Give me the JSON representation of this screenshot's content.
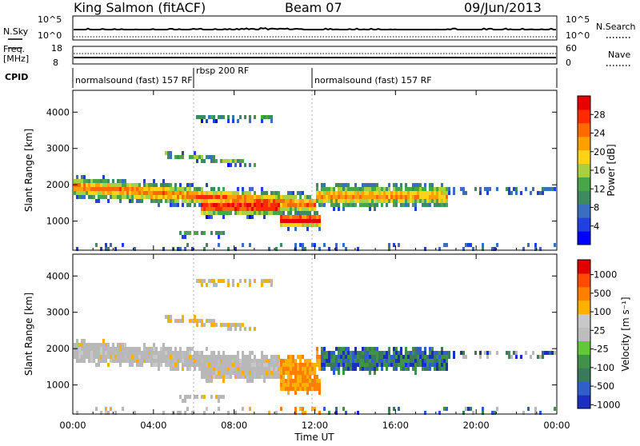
{
  "header": {
    "station": "King Salmon (fitACF)",
    "beam": "Beam 07",
    "date": "09/Jun/2013"
  },
  "noise_panel": {
    "left_label": "N.Sky",
    "right_label": "N.Search",
    "left_ticks": [
      "10^5",
      "10^0"
    ],
    "right_ticks": [
      "10^5",
      "10^0"
    ]
  },
  "freq_panel": {
    "left_label_1": "Freq.",
    "left_label_2": "[MHz]",
    "right_label": "Nave",
    "left_ticks": [
      "18",
      "8"
    ],
    "right_ticks": [
      "60",
      "0"
    ]
  },
  "cpid_panel": {
    "label": "CPID",
    "segments": [
      "normalsound (fast) 157 RF",
      "rbsp 200 RF",
      "normalsound (fast) 157 RF"
    ]
  },
  "colors": {
    "power_scale": [
      "#0000ff",
      "#2040e0",
      "#3a6fc0",
      "#3f8a60",
      "#4aa448",
      "#a8d040",
      "#ffd21a",
      "#ffa000",
      "#ff6a00",
      "#ff2a00",
      "#e60000"
    ],
    "velocity_scale": [
      "#1a2fc0",
      "#2f5fc8",
      "#3a7a5a",
      "#3f9248",
      "#62c83a",
      "#bdbdbd",
      "#c8c8c8",
      "#ffb000",
      "#ff8000",
      "#ff4a00",
      "#e00000"
    ],
    "ground_scatter": "#b8b8b8"
  },
  "chart_data": [
    {
      "type": "heatmap",
      "name": "power",
      "xlabel": "",
      "ylabel": "Slant Range [km]",
      "x_ticks": [
        "00:00",
        "04:00",
        "08:00",
        "12:00",
        "16:00",
        "20:00",
        "00:00"
      ],
      "y_ticks": [
        "1000",
        "2000",
        "3000",
        "4000"
      ],
      "ylim": [
        200,
        4600
      ],
      "colorbar": {
        "label": "Power [dB]",
        "ticks": [
          "4",
          "8",
          "12",
          "16",
          "20",
          "24",
          "28"
        ]
      },
      "features": [
        {
          "t_start": 0.0,
          "t_end": 12.0,
          "range_center": 1900,
          "level": "medium"
        },
        {
          "t_start": 6.5,
          "t_end": 10.0,
          "range_center": 1400,
          "level": "high"
        },
        {
          "t_start": 10.5,
          "t_end": 12.0,
          "range_center": 1050,
          "level": "high"
        },
        {
          "t_start": 12.0,
          "t_end": 18.0,
          "range_center": 1700,
          "level": "medium"
        },
        {
          "t_start": 18.0,
          "t_end": 24.0,
          "range_center": 1900,
          "level": "low"
        }
      ]
    },
    {
      "type": "heatmap",
      "name": "velocity",
      "xlabel": "Time UT",
      "ylabel": "Slant Range [km]",
      "x_ticks": [
        "00:00",
        "04:00",
        "08:00",
        "12:00",
        "16:00",
        "20:00",
        "00:00"
      ],
      "y_ticks": [
        "1000",
        "2000",
        "3000",
        "4000"
      ],
      "ylim": [
        200,
        4600
      ],
      "colorbar": {
        "label": "Velocity [m s⁻¹]",
        "ticks": [
          "1000",
          "500",
          "100",
          "25",
          "-25",
          "-100",
          "-500",
          "-1000"
        ]
      }
    }
  ]
}
